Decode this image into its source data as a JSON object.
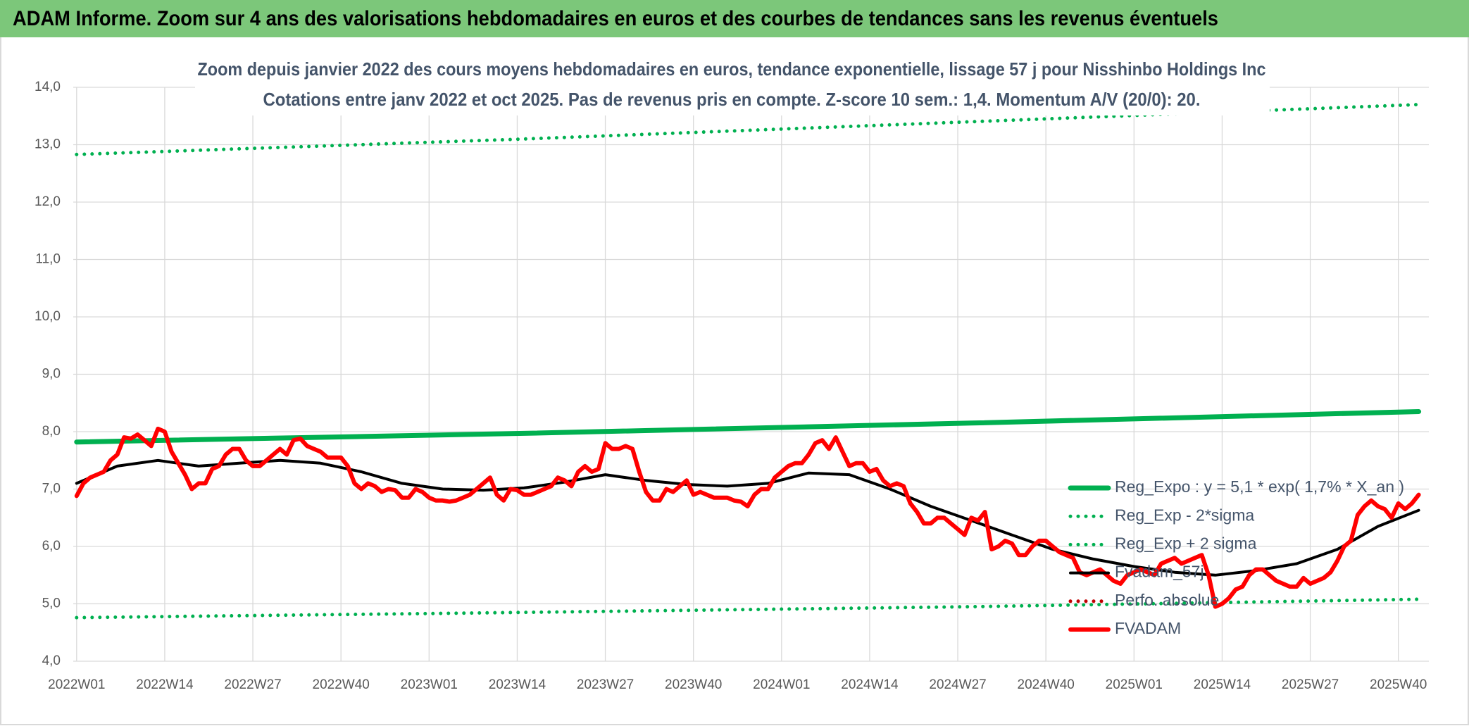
{
  "header": {
    "title": "ADAM Informe. Zoom sur 4 ans des valorisations hebdomadaires en euros et des courbes de tendances sans les revenus éventuels"
  },
  "chart_data": {
    "type": "line",
    "title": "Zoom depuis janvier 2022 des cours moyens hebdomadaires en euros, tendance exponentielle, lissage 57 j pour Nisshinbo Holdings Inc",
    "subtitle": "Cotations entre janv 2022 et oct 2025. Pas de revenus pris en compte. Z-score 10 sem.: 1,4. Momentum A/V (20/0): 20.",
    "xlim": [
      -0.5,
      199.5
    ],
    "xticks": [
      {
        "value": 0,
        "label": "2022W01"
      },
      {
        "value": 13,
        "label": "2022W14"
      },
      {
        "value": 26,
        "label": "2022W27"
      },
      {
        "value": 39,
        "label": "2022W40"
      },
      {
        "value": 52,
        "label": "2023W01"
      },
      {
        "value": 65,
        "label": "2023W14"
      },
      {
        "value": 78,
        "label": "2023W27"
      },
      {
        "value": 91,
        "label": "2023W40"
      },
      {
        "value": 104,
        "label": "2024W01"
      },
      {
        "value": 117,
        "label": "2024W14"
      },
      {
        "value": 130,
        "label": "2024W27"
      },
      {
        "value": 143,
        "label": "2024W40"
      },
      {
        "value": 156,
        "label": "2025W01"
      },
      {
        "value": 169,
        "label": "2025W14"
      },
      {
        "value": 182,
        "label": "2025W27"
      },
      {
        "value": 195,
        "label": "2025W40"
      }
    ],
    "ylim": [
      4,
      14
    ],
    "yticks": [
      {
        "value": 4,
        "label": "4,0"
      },
      {
        "value": 5,
        "label": "5,0"
      },
      {
        "value": 6,
        "label": "6,0"
      },
      {
        "value": 7,
        "label": "7,0"
      },
      {
        "value": 8,
        "label": "8,0"
      },
      {
        "value": 9,
        "label": "9,0"
      },
      {
        "value": 10,
        "label": "10,0"
      },
      {
        "value": 11,
        "label": "11,0"
      },
      {
        "value": 12,
        "label": "12,0"
      },
      {
        "value": 13,
        "label": "13,0"
      },
      {
        "value": 14,
        "label": "14,0"
      }
    ],
    "grid": true,
    "series": [
      {
        "name": "Reg_Expo : y = 5,1 * exp( 1,7% *  X_an )",
        "color": "#00b050",
        "style": "solid",
        "x": [
          0,
          66,
          132,
          198
        ],
        "values": [
          7.82,
          7.97,
          8.15,
          8.35
        ]
      },
      {
        "name": "Reg_Exp - 2*sigma",
        "color": "#00b050",
        "style": "dotted",
        "x": [
          0,
          66,
          132,
          198
        ],
        "values": [
          4.76,
          4.85,
          4.95,
          5.08
        ]
      },
      {
        "name": "Reg_Exp + 2 sigma",
        "color": "#00b050",
        "style": "dotted",
        "x": [
          0,
          66,
          132,
          198
        ],
        "values": [
          12.83,
          13.1,
          13.4,
          13.7
        ]
      },
      {
        "name": "Fvadam_57j",
        "color": "#000000",
        "style": "thin",
        "x": [
          0,
          6,
          12,
          18,
          24,
          30,
          36,
          42,
          48,
          54,
          60,
          66,
          72,
          78,
          84,
          90,
          96,
          102,
          108,
          114,
          120,
          126,
          132,
          138,
          144,
          150,
          156,
          162,
          168,
          174,
          180,
          186,
          192,
          198
        ],
        "values": [
          7.1,
          7.4,
          7.5,
          7.4,
          7.45,
          7.5,
          7.45,
          7.3,
          7.1,
          7.0,
          6.98,
          7.02,
          7.12,
          7.25,
          7.15,
          7.08,
          7.05,
          7.1,
          7.28,
          7.25,
          7.0,
          6.7,
          6.45,
          6.2,
          5.95,
          5.78,
          5.65,
          5.55,
          5.5,
          5.58,
          5.7,
          5.95,
          6.35,
          6.63
        ]
      },
      {
        "name": "Perfo. absolue",
        "color": "#c00000",
        "style": "dotted",
        "x": [],
        "values": []
      },
      {
        "name": "FVADAM",
        "color": "#ff0000",
        "style": "thick",
        "values": [
          6.88,
          7.1,
          7.2,
          7.25,
          7.3,
          7.5,
          7.6,
          7.9,
          7.88,
          7.95,
          7.85,
          7.75,
          8.05,
          8.0,
          7.65,
          7.45,
          7.25,
          7.0,
          7.1,
          7.1,
          7.35,
          7.4,
          7.6,
          7.7,
          7.7,
          7.5,
          7.4,
          7.4,
          7.5,
          7.6,
          7.7,
          7.6,
          7.85,
          7.88,
          7.75,
          7.7,
          7.65,
          7.55,
          7.55,
          7.55,
          7.4,
          7.1,
          7.0,
          7.1,
          7.05,
          6.95,
          7.0,
          6.98,
          6.85,
          6.85,
          7.0,
          6.95,
          6.85,
          6.8,
          6.8,
          6.78,
          6.8,
          6.85,
          6.9,
          7.0,
          7.1,
          7.2,
          6.9,
          6.8,
          7.0,
          6.98,
          6.9,
          6.9,
          6.95,
          7.0,
          7.05,
          7.2,
          7.15,
          7.05,
          7.3,
          7.4,
          7.3,
          7.35,
          7.8,
          7.7,
          7.7,
          7.75,
          7.7,
          7.3,
          6.95,
          6.8,
          6.8,
          7.0,
          6.95,
          7.05,
          7.15,
          6.9,
          6.95,
          6.9,
          6.85,
          6.85,
          6.85,
          6.8,
          6.78,
          6.7,
          6.9,
          7.0,
          7.0,
          7.2,
          7.3,
          7.4,
          7.45,
          7.45,
          7.6,
          7.8,
          7.85,
          7.7,
          7.9,
          7.65,
          7.4,
          7.45,
          7.45,
          7.3,
          7.35,
          7.15,
          7.05,
          7.1,
          7.05,
          6.75,
          6.6,
          6.4,
          6.4,
          6.5,
          6.5,
          6.4,
          6.3,
          6.2,
          6.5,
          6.45,
          6.6,
          5.95,
          6.0,
          6.1,
          6.05,
          5.85,
          5.85,
          6.0,
          6.1,
          6.1,
          6.0,
          5.9,
          5.85,
          5.8,
          5.55,
          5.5,
          5.55,
          5.6,
          5.5,
          5.4,
          5.35,
          5.5,
          5.55,
          5.6,
          5.55,
          5.5,
          5.7,
          5.75,
          5.8,
          5.7,
          5.75,
          5.8,
          5.85,
          5.5,
          4.95,
          5.0,
          5.1,
          5.25,
          5.3,
          5.5,
          5.6,
          5.6,
          5.5,
          5.4,
          5.35,
          5.3,
          5.3,
          5.45,
          5.35,
          5.4,
          5.45,
          5.55,
          5.75,
          6.0,
          6.1,
          6.55,
          6.7,
          6.8,
          6.7,
          6.65,
          6.5,
          6.75,
          6.65,
          6.75,
          6.9
        ]
      }
    ]
  }
}
